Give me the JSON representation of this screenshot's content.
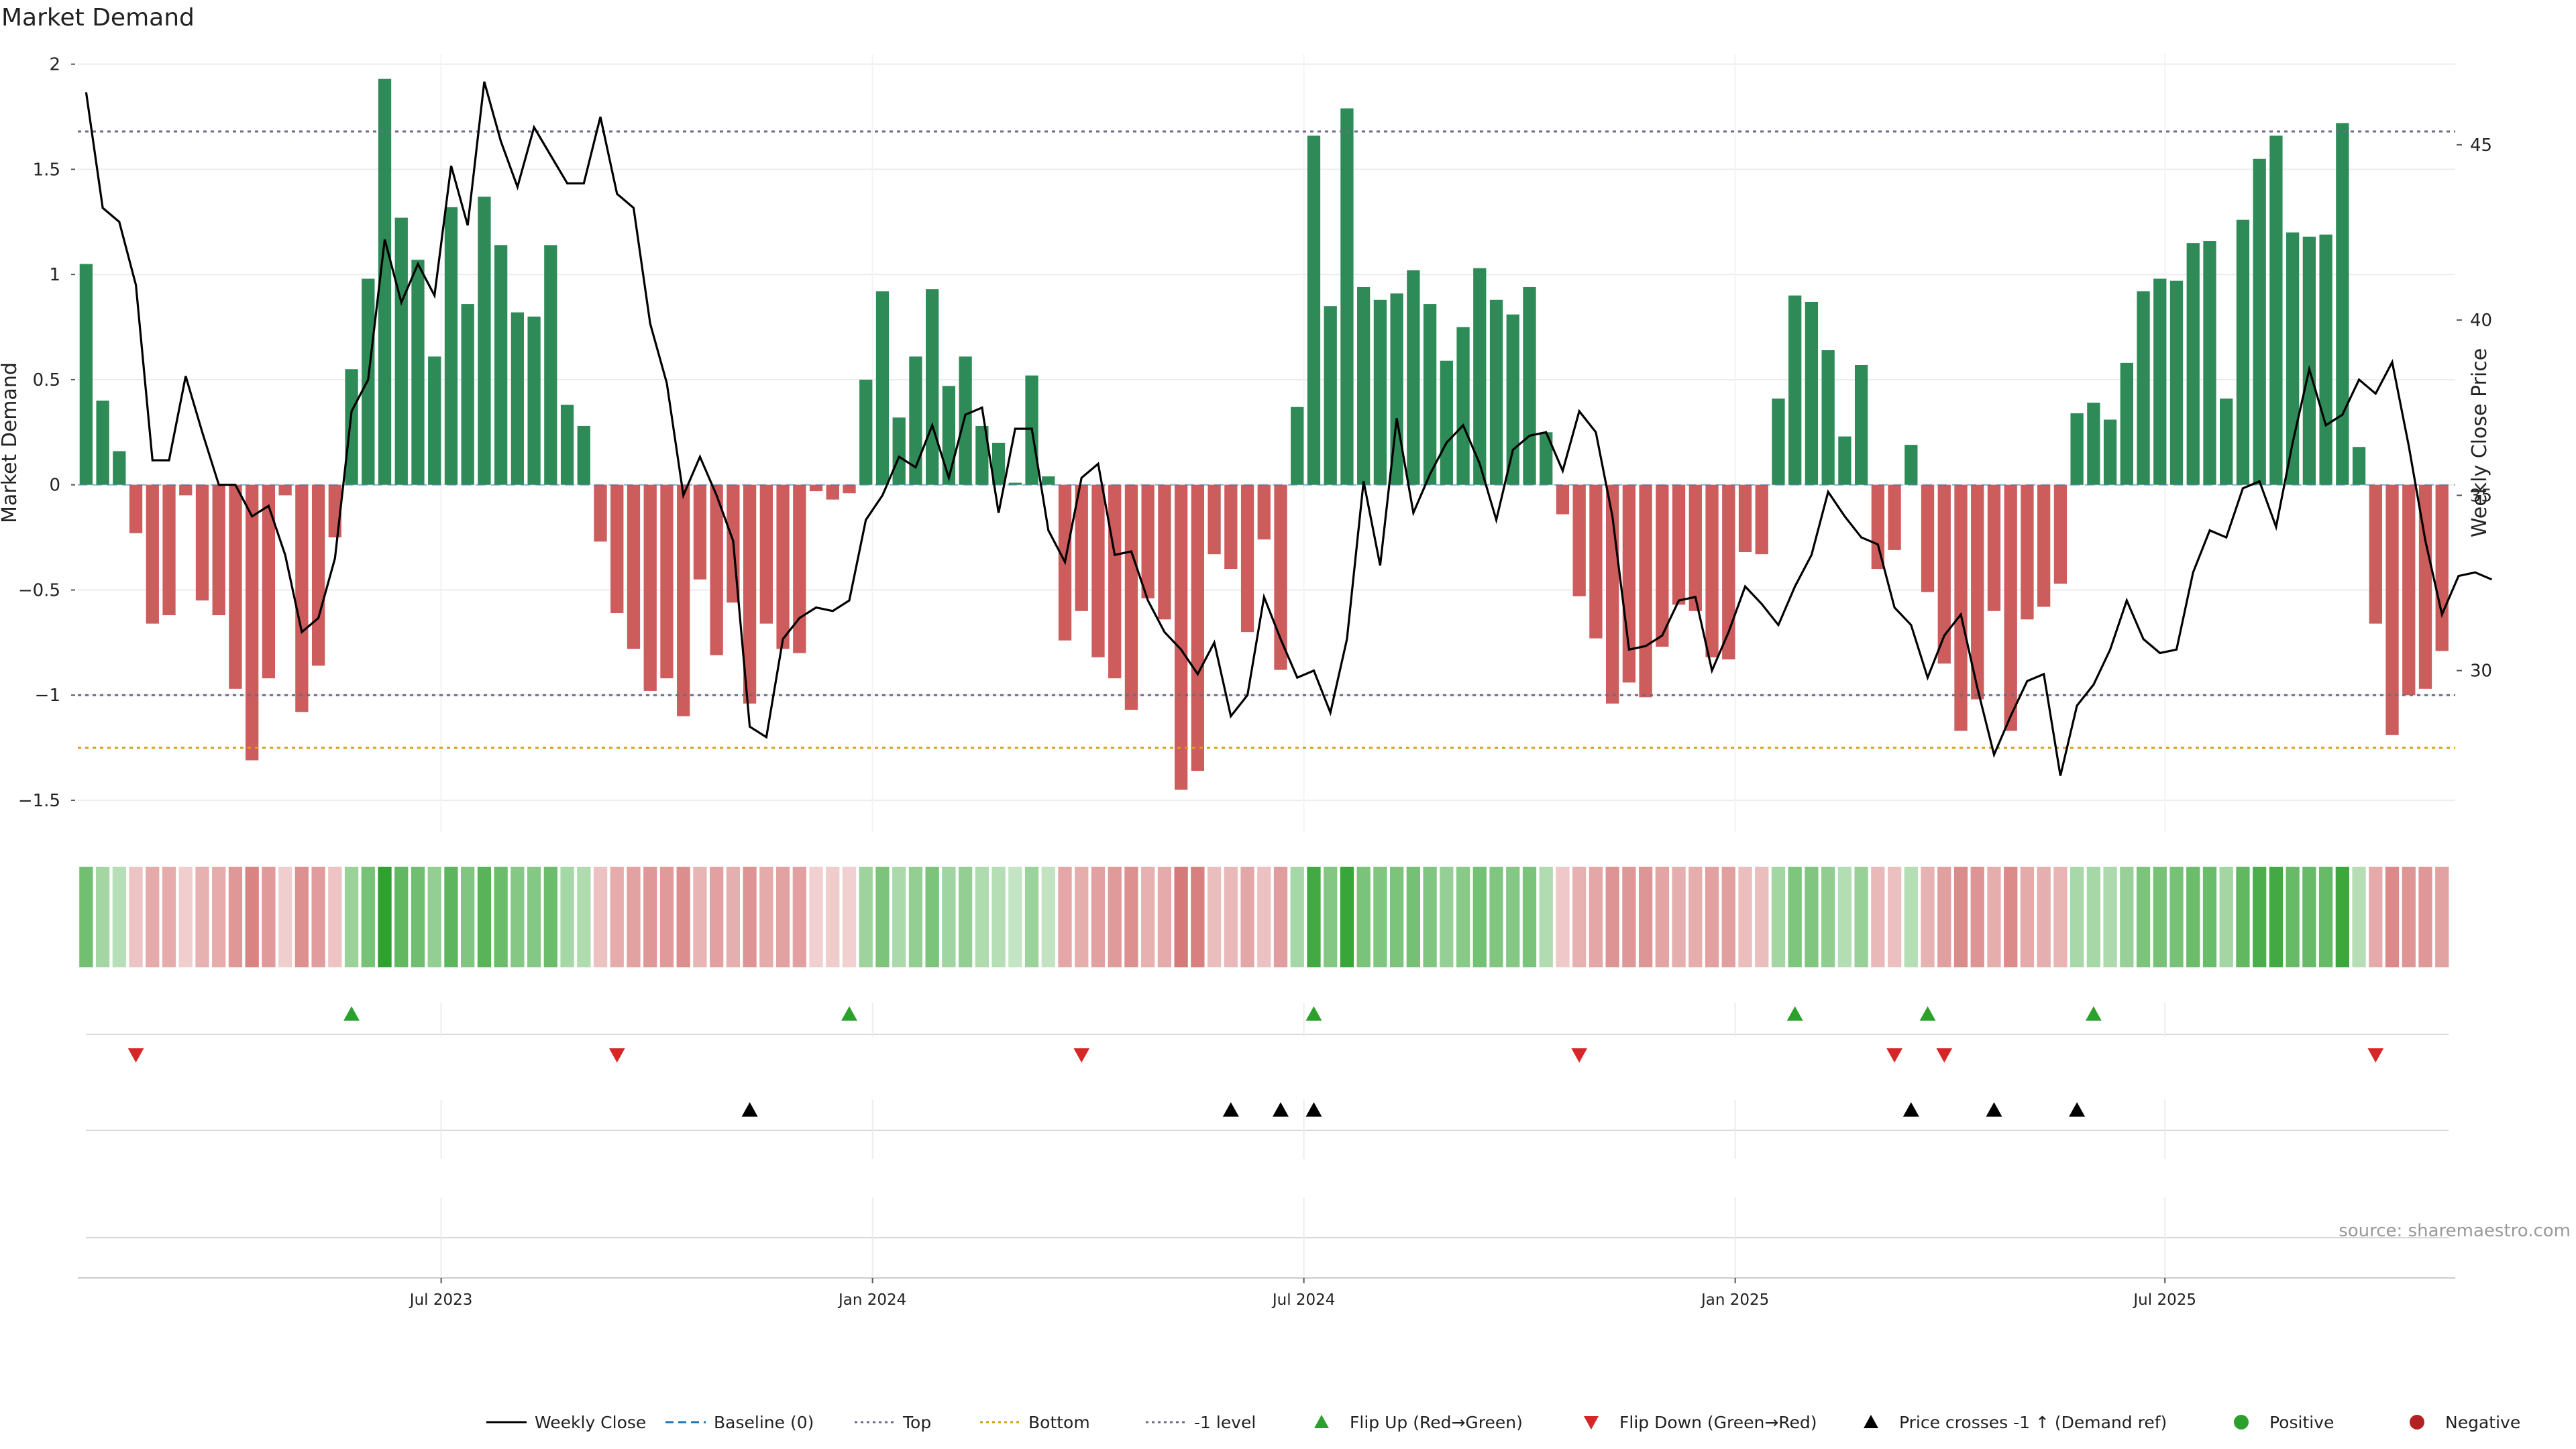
{
  "chart_data": {
    "type": "bar",
    "title": "Market Demand",
    "ylabel": "Market Demand",
    "y2label": "Weekly Close Price",
    "ylim": [
      -1.65,
      2.05
    ],
    "y2lim": [
      25.4,
      47.6
    ],
    "yticks": [
      2,
      1.5,
      1,
      0.5,
      0,
      -0.5,
      -1,
      -1.5
    ],
    "ytick_labels": [
      "2",
      "1.5",
      "1",
      "0.5",
      "0",
      "−0.5",
      "−1",
      "−1.5"
    ],
    "y2ticks": [
      45,
      40,
      35,
      30
    ],
    "y2tick_labels": [
      "45",
      "40",
      "35",
      "30"
    ],
    "xticks": [
      21.4,
      47.4,
      73.4,
      99.4,
      125.3
    ],
    "xtick_labels": [
      "Jul 2023",
      "Jan 2024",
      "Jul 2024",
      "Jan 2025",
      "Jul 2025"
    ],
    "x_range": [
      -0.5,
      142.8
    ],
    "reference_levels": {
      "top": 1.68,
      "bottom": -1.25,
      "minus_one": -1.0,
      "baseline": 0
    },
    "demand": [
      1.05,
      0.4,
      0.16,
      -0.23,
      -0.66,
      -0.62,
      -0.05,
      -0.55,
      -0.62,
      -0.97,
      -1.31,
      -0.92,
      -0.05,
      -1.08,
      -0.86,
      -0.25,
      0.55,
      0.98,
      1.93,
      1.27,
      1.07,
      0.61,
      1.32,
      0.86,
      1.37,
      1.14,
      0.82,
      0.8,
      1.14,
      0.38,
      0.28,
      -0.27,
      -0.61,
      -0.78,
      -0.98,
      -0.92,
      -1.1,
      -0.45,
      -0.81,
      -0.56,
      -1.04,
      -0.66,
      -0.78,
      -0.8,
      -0.03,
      -0.07,
      -0.04,
      0.5,
      0.92,
      0.32,
      0.61,
      0.93,
      0.47,
      0.61,
      0.28,
      0.2,
      0.01,
      0.52,
      0.04,
      -0.74,
      -0.6,
      -0.82,
      -0.92,
      -1.07,
      -0.54,
      -0.64,
      -1.45,
      -1.36,
      -0.33,
      -0.4,
      -0.7,
      -0.26,
      -0.88,
      0.37,
      1.66,
      0.85,
      1.79,
      0.94,
      0.88,
      0.91,
      1.02,
      0.86,
      0.59,
      0.75,
      1.03,
      0.88,
      0.81,
      0.94,
      0.25,
      -0.14,
      -0.53,
      -0.73,
      -1.04,
      -0.94,
      -1.01,
      -0.77,
      -0.57,
      -0.6,
      -0.82,
      -0.83,
      -0.32,
      -0.33,
      0.41,
      0.9,
      0.87,
      0.64,
      0.23,
      0.57,
      -0.4,
      -0.31,
      0.19,
      -0.51,
      -0.85,
      -1.17,
      -1.02,
      -0.6,
      -1.17,
      -0.64,
      -0.58,
      -0.47,
      0.34,
      0.39,
      0.31,
      0.58,
      0.92,
      0.98,
      0.97,
      1.15,
      1.16,
      0.41,
      1.26,
      1.55,
      1.66,
      1.2,
      1.18,
      1.19,
      1.72,
      0.18,
      -0.66,
      -1.19,
      -1.0,
      -0.97,
      -0.79
    ],
    "price": [
      46.5,
      43.2,
      42.8,
      41.0,
      36.0,
      36.0,
      38.4,
      36.8,
      35.3,
      35.3,
      34.4,
      34.7,
      33.3,
      31.1,
      31.5,
      33.2,
      37.4,
      38.3,
      42.3,
      40.5,
      41.6,
      40.7,
      44.4,
      42.7,
      46.8,
      45.1,
      43.8,
      45.5,
      44.7,
      43.9,
      43.9,
      45.8,
      43.6,
      43.2,
      39.9,
      38.2,
      35.0,
      36.1,
      35.0,
      33.7,
      28.4,
      28.1,
      30.9,
      31.5,
      31.8,
      31.7,
      32.0,
      34.3,
      35.0,
      36.1,
      35.8,
      37.0,
      35.5,
      37.3,
      37.5,
      34.5,
      36.9,
      36.9,
      34.0,
      33.1,
      35.5,
      35.9,
      33.3,
      33.4,
      32.0,
      31.1,
      30.6,
      29.9,
      30.8,
      28.7,
      29.3,
      32.1,
      30.9,
      29.8,
      30.0,
      28.8,
      30.9,
      35.4,
      33.0,
      37.2,
      34.5,
      35.6,
      36.5,
      37.0,
      35.9,
      34.3,
      36.3,
      36.7,
      36.8,
      35.7,
      37.4,
      36.8,
      34.4,
      30.6,
      30.7,
      31.0,
      32.0,
      32.1,
      30.0,
      31.1,
      32.4,
      31.9,
      31.3,
      32.4,
      33.3,
      35.1,
      34.4,
      33.8,
      33.6,
      31.8,
      31.3,
      29.8,
      31.0,
      31.6,
      29.5,
      27.6,
      28.7,
      29.7,
      29.9,
      27.0,
      29.0,
      29.6,
      30.6,
      32.0,
      30.9,
      30.5,
      30.6,
      32.8,
      34.0,
      33.8,
      35.2,
      35.4,
      34.1,
      36.5,
      38.6,
      37.0,
      37.3,
      38.3,
      37.9,
      38.8,
      36.4,
      33.7,
      31.6,
      32.7,
      32.8,
      32.6
    ],
    "flip_up": [
      16,
      46,
      74,
      103,
      111,
      121
    ],
    "flip_down": [
      3,
      32,
      60,
      90,
      109,
      112,
      138
    ],
    "price_crosses": [
      40,
      69,
      72,
      74,
      110,
      115,
      120
    ],
    "legend": [
      "Weekly Close",
      "Baseline (0)",
      "Top",
      "Bottom",
      "-1 level",
      "Flip Up (Red→Green)",
      "Flip Down (Green→Red)",
      "Price crosses -1 ↑ (Demand ref)",
      "Positive",
      "Negative"
    ],
    "source": "source: sharemaestro.com"
  },
  "colors": {
    "positive": "#2e8b57",
    "negative": "#cd5c5c",
    "price": "#000000",
    "top_line": "#6b6b8a",
    "bottom_line": "#d4a017",
    "baseline": "#1f77b4",
    "flip_up": "#2ca02c",
    "flip_down": "#d62728",
    "cross": "#000000",
    "pos_dot": "#2ca02c",
    "neg_dot": "#b22222"
  }
}
